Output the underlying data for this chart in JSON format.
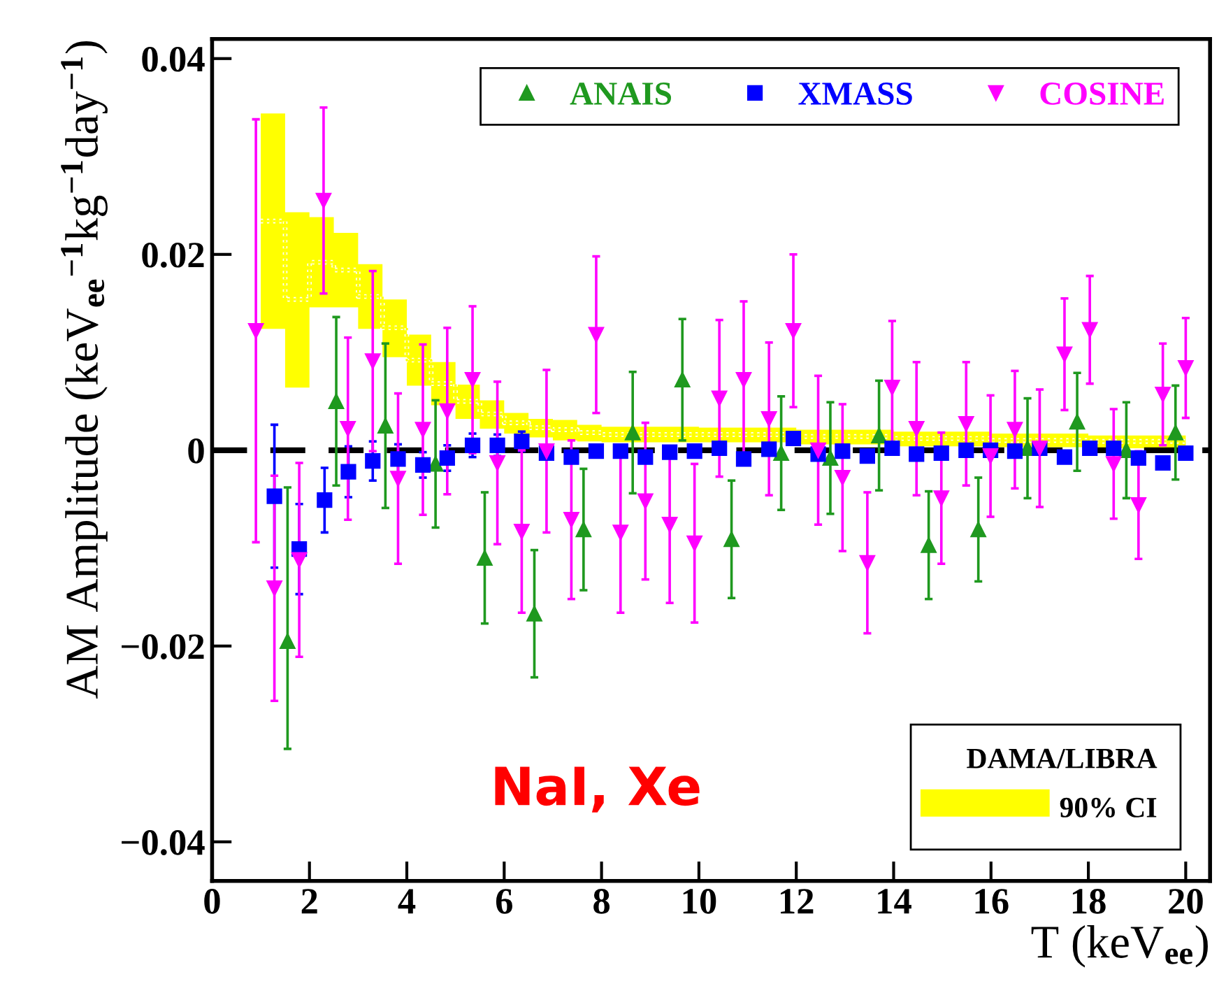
{
  "chart_data": {
    "type": "scatter",
    "xlabel": "T (keV$_{ee}$)",
    "ylabel": "AM Amplitude (keV$_{ee}$$^{−1}$kg$^{−1}$day$^{−1}$)",
    "legend_title": "DAMA/LIBRA",
    "annotations": [
      "NaI, Xe"
    ],
    "xlim": [
      0,
      20.5
    ],
    "ylim": [
      -0.044,
      0.042
    ],
    "xticks": [
      0,
      2,
      4,
      6,
      8,
      10,
      12,
      14,
      16,
      18,
      20
    ],
    "yticks": [
      {
        "value": -0.04,
        "label": "−0.04"
      },
      {
        "value": -0.02,
        "label": "−0.02"
      },
      0,
      0.02,
      0.04
    ],
    "legend": "top right",
    "grid": false,
    "ref_lines": [
      {
        "axis": "y",
        "value": 0,
        "color": "#000000",
        "line_style": "dashed"
      }
    ],
    "series": [
      {
        "type": "step",
        "name": "90% CI",
        "color": "#ffff00",
        "x": [
          1.0,
          1.5,
          2.0,
          2.5,
          3.0,
          3.5,
          4.0,
          4.5,
          5.0,
          5.5,
          6.0,
          6.5,
          7.0,
          7.5,
          8.0,
          10.0,
          12.0,
          14.0,
          16.0,
          18.0,
          20.0
        ],
        "line_style": "dotted",
        "values": [
          0.0234,
          0.0154,
          0.0192,
          0.0184,
          0.0157,
          0.0125,
          0.0092,
          0.0068,
          0.005,
          0.0037,
          0.0028,
          0.0023,
          0.0021,
          0.0018,
          0.0016,
          0.0016,
          0.0014,
          0.0012,
          0.001,
          0.0009,
          0.0009
        ],
        "upper": [
          0.0344,
          0.0243,
          0.0238,
          0.0222,
          0.019,
          0.0154,
          0.0118,
          0.009,
          0.0067,
          0.0051,
          0.0038,
          0.0032,
          0.0031,
          0.0026,
          0.0024,
          0.0023,
          0.0021,
          0.0019,
          0.0017,
          0.0015,
          0.0015
        ],
        "lower": [
          0.0124,
          0.0064,
          0.0146,
          0.0146,
          0.0124,
          0.0095,
          0.0066,
          0.0046,
          0.0032,
          0.0022,
          0.0017,
          0.0013,
          0.001,
          0.0009,
          0.0008,
          0.0008,
          0.0006,
          0.0004,
          0.0003,
          0.0002,
          0.0002
        ]
      },
      {
        "name": "ANAIS",
        "color": "#1f991f",
        "marker": "triangle",
        "x": [
          1.55,
          2.55,
          3.56,
          4.59,
          5.6,
          6.62,
          7.63,
          8.64,
          9.66,
          10.67,
          11.69,
          12.7,
          13.7,
          14.72,
          15.74,
          16.75,
          17.77,
          18.78,
          19.79
        ],
        "values": [
          -0.0195,
          0.005,
          0.0025,
          -0.0014,
          -0.011,
          -0.0167,
          -0.0081,
          0.0018,
          0.0072,
          -0.0091,
          -0.0003,
          -0.0008,
          0.0015,
          -0.0097,
          -0.0081,
          0.0002,
          0.0029,
          0.0,
          0.0018
        ],
        "errors": [
          [
            -0.0305,
            -0.0038
          ],
          0.0086,
          0.0084,
          0.0065,
          0.0067,
          0.0065,
          0.0062,
          0.0062,
          0.0062,
          0.006,
          0.0058,
          0.0057,
          0.0056,
          0.0055,
          0.0053,
          0.0051,
          0.005,
          0.0049,
          0.0048
        ]
      },
      {
        "name": "XMASS",
        "color": "#0000ff",
        "marker": "square",
        "x": [
          1.28,
          1.79,
          2.31,
          2.8,
          3.3,
          3.82,
          4.33,
          4.83,
          5.35,
          5.86,
          6.36,
          6.87,
          7.38,
          7.89,
          8.39,
          8.9,
          9.4,
          9.91,
          10.42,
          10.92,
          11.44,
          11.94,
          12.45,
          12.95,
          13.46,
          13.97,
          14.47,
          14.98,
          15.49,
          15.99,
          16.49,
          17.0,
          17.51,
          18.03,
          18.52,
          19.03,
          19.53,
          20.0
        ],
        "values": [
          -0.0047,
          -0.0101,
          -0.0051,
          -0.0022,
          -0.0011,
          -0.0009,
          -0.0015,
          -0.0008,
          0.0005,
          0.0005,
          0.0009,
          -0.0003,
          -0.0007,
          -0.0001,
          -0.0001,
          -0.0007,
          -0.0002,
          -0.0001,
          0.0002,
          -0.0009,
          0.0001,
          0.0012,
          -0.0004,
          -0.0001,
          -0.0006,
          0.0002,
          -0.0004,
          -0.0003,
          0.0,
          0.0,
          -0.0001,
          0.0002,
          -0.0007,
          0.0002,
          0.0002,
          -0.0008,
          -0.0013,
          -0.0003
        ],
        "errors": [
          0.0073,
          0.0046,
          0.0033,
          0.0026,
          0.002,
          0.0015,
          0.0013,
          0.0013,
          0.0012,
          0.0011,
          0.001,
          null,
          null,
          null,
          null,
          null,
          null,
          null,
          null,
          null,
          null,
          null,
          null,
          null,
          null,
          null,
          null,
          null,
          null,
          null,
          null,
          null,
          null,
          null,
          null,
          null,
          null,
          null
        ]
      },
      {
        "name": "COSINE",
        "color": "#ff00ff",
        "marker": "triangle_down",
        "x": [
          0.9,
          1.28,
          1.79,
          2.29,
          2.79,
          3.3,
          3.82,
          4.33,
          4.83,
          5.35,
          5.86,
          6.36,
          6.87,
          7.38,
          7.89,
          8.39,
          8.9,
          9.4,
          9.91,
          10.42,
          10.92,
          11.44,
          11.94,
          12.45,
          12.95,
          13.46,
          13.97,
          14.47,
          14.98,
          15.49,
          15.99,
          16.49,
          17.0,
          17.51,
          18.03,
          18.52,
          19.03,
          19.53,
          20.0
        ],
        "values": [
          0.0122,
          -0.0141,
          -0.0112,
          0.0255,
          0.0022,
          0.0091,
          -0.0029,
          0.0021,
          0.004,
          0.0072,
          -0.0013,
          -0.0083,
          -0.0001,
          -0.0071,
          0.0118,
          -0.0084,
          -0.0052,
          -0.0076,
          -0.0095,
          0.0053,
          0.0072,
          0.0032,
          0.0122,
          0.0,
          -0.0028,
          -0.0115,
          0.0064,
          0.0022,
          -0.0049,
          0.0027,
          -0.0006,
          0.0021,
          0.0002,
          0.0098,
          0.0123,
          -0.0014,
          -0.0056,
          0.0057,
          0.0084
        ],
        "errors": [
          0.0216,
          0.0115,
          0.0099,
          0.0095,
          0.0093,
          0.0092,
          0.0087,
          0.0087,
          0.0085,
          0.0075,
          0.0083,
          0.0083,
          0.0083,
          0.0081,
          0.008,
          0.0082,
          0.008,
          0.008,
          0.0081,
          0.008,
          0.008,
          0.0078,
          0.0078,
          0.0076,
          0.0075,
          0.0072,
          0.0068,
          0.0068,
          0.0067,
          0.0063,
          0.0062,
          0.006,
          0.006,
          0.0057,
          0.0055,
          0.0056,
          0.0055,
          0.0052,
          0.0051
        ]
      }
    ]
  }
}
